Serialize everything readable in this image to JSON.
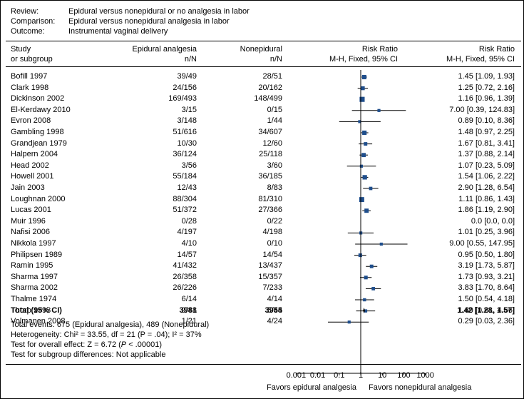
{
  "header": {
    "review_label": "Review:",
    "review_value": "Epidural versus nonepidural or no analgesia in labor",
    "comparison_label": "Comparison:",
    "comparison_value": "Epidural versus nonepidural analgesia in labor",
    "outcome_label": "Outcome:",
    "outcome_value": "Instrumental vaginal delivery"
  },
  "columns": {
    "study_line1": "Study",
    "study_line2": "or subgroup",
    "epi_line1": "Epidural analgesia",
    "epi_line2": "n/N",
    "non_line1": "Nonepidural",
    "non_line2": "n/N",
    "plot_line1": "Risk Ratio",
    "plot_line2": "M-H, Fixed, 95% CI",
    "rr_line1": "Risk Ratio",
    "rr_line2": "M-H, Fixed, 95% CI"
  },
  "total_row": {
    "label": "Total (95% CI)",
    "epidural": "3981",
    "nonepidural": "3954",
    "rr_text": "1.42 [1.28, 1.57]"
  },
  "stats": {
    "line1": "Total events: 675 (Epidural analgesia), 489 (Nonepidural)",
    "line2": "Heterogeneity: Chi² = 33.55, df = 21 (P = .04); I² = 37%",
    "line3_pre": "Test for overall effect: Z = 6.72 (",
    "line3_p": "P",
    "line3_post": " < .00001)",
    "line4": "Test for subgroup differences: Not applicable"
  },
  "axis": {
    "ticks": [
      "0.001",
      "0.01",
      "0.1",
      "1",
      "10",
      "100",
      "1000"
    ],
    "favors_left": "Favors epidural analgesia",
    "favors_right": "Favors nonepidural analgesia"
  },
  "colors": {
    "marker": "#1f4e8c",
    "line": "#000000"
  },
  "chart_data": {
    "type": "forest",
    "scale": "log",
    "xlim": [
      0.001,
      1000
    ],
    "null_line": 1,
    "studies": [
      {
        "name": "Bofill 1997",
        "epidural": "39/49",
        "nonepidural": "28/51",
        "rr": 1.45,
        "lo": 1.09,
        "hi": 1.93,
        "rr_text": "1.45 [1.09, 1.93]",
        "weight": 2
      },
      {
        "name": "Clark 1998",
        "epidural": "24/156",
        "nonepidural": "20/162",
        "rr": 1.25,
        "lo": 0.72,
        "hi": 2.16,
        "rr_text": "1.25 [0.72, 2.16]",
        "weight": 1.2
      },
      {
        "name": "Dickinson 2002",
        "epidural": "169/493",
        "nonepidural": "148/499",
        "rr": 1.16,
        "lo": 0.96,
        "hi": 1.39,
        "rr_text": "1.16 [0.96, 1.39]",
        "weight": 3.5
      },
      {
        "name": "El-Kerdawy 2010",
        "epidural": "3/15",
        "nonepidural": "0/15",
        "rr": 7.0,
        "lo": 0.39,
        "hi": 124.83,
        "rr_text": "7.00 [0.39, 124.83]",
        "weight": 0.3
      },
      {
        "name": "Evron 2008",
        "epidural": "3/148",
        "nonepidural": "1/44",
        "rr": 0.89,
        "lo": 0.1,
        "hi": 8.36,
        "rr_text": "0.89 [0.10, 8.36]",
        "weight": 0.3
      },
      {
        "name": "Gambling 1998",
        "epidural": "51/616",
        "nonepidural": "34/607",
        "rr": 1.48,
        "lo": 0.97,
        "hi": 2.25,
        "rr_text": "1.48 [0.97, 2.25]",
        "weight": 2
      },
      {
        "name": "Grandjean 1979",
        "epidural": "10/30",
        "nonepidural": "12/60",
        "rr": 1.67,
        "lo": 0.81,
        "hi": 3.41,
        "rr_text": "1.67 [0.81, 3.41]",
        "weight": 0.8
      },
      {
        "name": "Halpern 2004",
        "epidural": "36/124",
        "nonepidural": "25/118",
        "rr": 1.37,
        "lo": 0.88,
        "hi": 2.14,
        "rr_text": "1.37 [0.88, 2.14]",
        "weight": 1.6
      },
      {
        "name": "Head 2002",
        "epidural": "3/56",
        "nonepidural": "3/60",
        "rr": 1.07,
        "lo": 0.23,
        "hi": 5.09,
        "rr_text": "1.07 [0.23, 5.09]",
        "weight": 0.3
      },
      {
        "name": "Howell 2001",
        "epidural": "55/184",
        "nonepidural": "36/185",
        "rr": 1.54,
        "lo": 1.06,
        "hi": 2.22,
        "rr_text": "1.54 [1.06, 2.22]",
        "weight": 2.2
      },
      {
        "name": "Jain 2003",
        "epidural": "12/43",
        "nonepidural": "8/83",
        "rr": 2.9,
        "lo": 1.28,
        "hi": 6.54,
        "rr_text": "2.90 [1.28, 6.54]",
        "weight": 0.6
      },
      {
        "name": "Loughnan 2000",
        "epidural": "88/304",
        "nonepidural": "81/310",
        "rr": 1.11,
        "lo": 0.86,
        "hi": 1.43,
        "rr_text": "1.11 [0.86, 1.43]",
        "weight": 3.2
      },
      {
        "name": "Lucas 2001",
        "epidural": "51/372",
        "nonepidural": "27/366",
        "rr": 1.86,
        "lo": 1.19,
        "hi": 2.9,
        "rr_text": "1.86 [1.19, 2.90]",
        "weight": 1.8
      },
      {
        "name": "Muir 1996",
        "epidural": "0/28",
        "nonepidural": "0/22",
        "rr": null,
        "lo": null,
        "hi": null,
        "rr_text": "0.0 [0.0, 0.0]",
        "weight": 0
      },
      {
        "name": "Nafisi 2006",
        "epidural": "4/197",
        "nonepidural": "4/198",
        "rr": 1.01,
        "lo": 0.25,
        "hi": 3.96,
        "rr_text": "1.01 [0.25, 3.96]",
        "weight": 0.3
      },
      {
        "name": "Nikkola 1997",
        "epidural": "4/10",
        "nonepidural": "0/10",
        "rr": 9.0,
        "lo": 0.55,
        "hi": 147.95,
        "rr_text": "9.00 [0.55, 147.95]",
        "weight": 0.3
      },
      {
        "name": "Philipsen 1989",
        "epidural": "14/57",
        "nonepidural": "14/54",
        "rr": 0.95,
        "lo": 0.5,
        "hi": 1.8,
        "rr_text": "0.95 [0.50, 1.80]",
        "weight": 0.9
      },
      {
        "name": "Ramin 1995",
        "epidural": "41/432",
        "nonepidural": "13/437",
        "rr": 3.19,
        "lo": 1.73,
        "hi": 5.87,
        "rr_text": "3.19 [1.73, 5.87]",
        "weight": 0.8
      },
      {
        "name": "Sharma 1997",
        "epidural": "26/358",
        "nonepidural": "15/357",
        "rr": 1.73,
        "lo": 0.93,
        "hi": 3.21,
        "rr_text": "1.73 [0.93, 3.21]",
        "weight": 0.9
      },
      {
        "name": "Sharma 2002",
        "epidural": "26/226",
        "nonepidural": "7/233",
        "rr": 3.83,
        "lo": 1.7,
        "hi": 8.64,
        "rr_text": "3.83 [1.70, 8.64]",
        "weight": 0.6
      },
      {
        "name": "Thalme 1974",
        "epidural": "6/14",
        "nonepidural": "4/14",
        "rr": 1.5,
        "lo": 0.54,
        "hi": 4.18,
        "rr_text": "1.50 [0.54, 4.18]",
        "weight": 0.4
      },
      {
        "name": "Thorp 1993",
        "epidural": "9/48",
        "nonepidural": "5/45",
        "rr": 1.69,
        "lo": 0.61,
        "hi": 4.66,
        "rr_text": "1.69 [0.61, 4.66]",
        "weight": 0.4
      },
      {
        "name": "Volmanen 2008",
        "epidural": "1/21",
        "nonepidural": "4/24",
        "rr": 0.29,
        "lo": 0.03,
        "hi": 2.36,
        "rr_text": "0.29 [0.03, 2.36]",
        "weight": 0.3
      }
    ],
    "total": {
      "rr": 1.42,
      "lo": 1.28,
      "hi": 1.57
    }
  }
}
